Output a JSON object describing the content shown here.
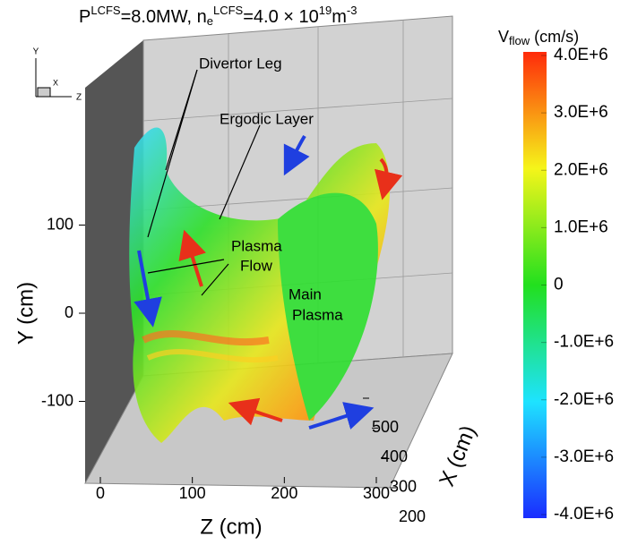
{
  "chart_data": {
    "type": "surface3d",
    "title": [
      "P",
      "LCFS",
      "=8.0MW, n",
      "e",
      "LCFS",
      "=4.0 × 10",
      "19",
      "m",
      "-3"
    ],
    "x_label": "X (cm)",
    "y_label": "Y (cm)",
    "z_label": "Z (cm)",
    "xlim": [
      200,
      500
    ],
    "xticks": [
      200,
      300,
      400,
      500
    ],
    "ylim": [
      -100,
      100
    ],
    "yticks": [
      -100,
      0,
      100
    ],
    "zlim": [
      0,
      300
    ],
    "zticks": [
      0,
      100,
      200,
      300
    ],
    "triad": [
      "Y",
      "X",
      "Z"
    ],
    "colorbar": {
      "title": [
        "V",
        "flow",
        " (cm/s)"
      ],
      "colors": [
        "#1a2cff",
        "#1ee3ff",
        "#22e01e",
        "#f5f51a",
        "#ff2a0a"
      ],
      "clim": [
        -4000000,
        4000000
      ],
      "ticks": [
        {
          "value": 4000000,
          "label": "4.0E+6"
        },
        {
          "value": 3000000,
          "label": "3.0E+6"
        },
        {
          "value": 2000000,
          "label": "2.0E+6"
        },
        {
          "value": 1000000,
          "label": "1.0E+6"
        },
        0,
        {
          "value": -1000000,
          "label": "-1.0E+6"
        },
        {
          "value": -2000000,
          "label": "-2.0E+6"
        },
        {
          "value": -3000000,
          "label": "-3.0E+6"
        },
        {
          "value": -4000000,
          "label": "-4.0E+6"
        }
      ]
    },
    "annotations": [
      "Divertor Leg",
      "Ergodic Layer",
      [
        "Plasma",
        "Flow"
      ],
      [
        "Main",
        "Plasma"
      ]
    ]
  }
}
